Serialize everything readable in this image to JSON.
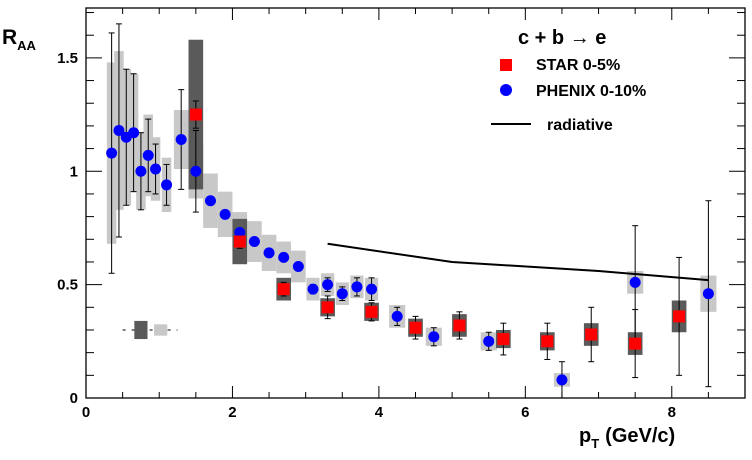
{
  "chart_data": {
    "type": "scatter",
    "title": "",
    "xlabel": "p",
    "xlabel_sub": "T",
    "xlabel_unit": "(GeV/c)",
    "ylabel": "R",
    "ylabel_sub": "AA",
    "xlim": [
      0,
      9
    ],
    "ylim": [
      0,
      1.72
    ],
    "x_ticks": [
      0,
      2,
      4,
      6,
      8
    ],
    "y_ticks": [
      0,
      0.5,
      1,
      1.5
    ],
    "x_tick_labels": [
      "0",
      "2",
      "4",
      "6",
      "8"
    ],
    "y_tick_labels": [
      "0",
      "0.5",
      "1",
      "1.5"
    ],
    "grid": false,
    "legend_position": "top-right",
    "legend_title": "c + b → e",
    "colors": {
      "star": "#ff0000",
      "phenix": "#0000ff",
      "star_sys": "#5a5a5a",
      "phenix_sys": "#c8c8c8",
      "radiative": "#000000"
    },
    "series": [
      {
        "name": "STAR 0-5%",
        "marker": "square",
        "points": [
          {
            "x": 1.5,
            "y": 1.25,
            "err": 0.06,
            "sys": 0.33
          },
          {
            "x": 2.1,
            "y": 0.69,
            "err": 0.03,
            "sys": 0.1
          },
          {
            "x": 2.7,
            "y": 0.48,
            "err": 0.03,
            "sys": 0.05
          },
          {
            "x": 3.3,
            "y": 0.4,
            "err": 0.05,
            "sys": 0.04
          },
          {
            "x": 3.9,
            "y": 0.38,
            "err": 0.04,
            "sys": 0.04
          },
          {
            "x": 4.5,
            "y": 0.31,
            "err": 0.05,
            "sys": 0.04
          },
          {
            "x": 5.1,
            "y": 0.32,
            "err": 0.06,
            "sys": 0.05
          },
          {
            "x": 5.7,
            "y": 0.26,
            "err": 0.07,
            "sys": 0.04
          },
          {
            "x": 6.3,
            "y": 0.25,
            "err": 0.08,
            "sys": 0.04
          },
          {
            "x": 6.9,
            "y": 0.28,
            "err": 0.12,
            "sys": 0.05
          },
          {
            "x": 7.5,
            "y": 0.24,
            "err": 0.15,
            "sys": 0.05
          },
          {
            "x": 8.1,
            "y": 0.36,
            "err": 0.26,
            "sys": 0.07
          }
        ]
      },
      {
        "name": "PHENIX 0-10%",
        "marker": "circle",
        "points": [
          {
            "x": 0.35,
            "y": 1.08,
            "err": 0.53,
            "sys": 0.4
          },
          {
            "x": 0.45,
            "y": 1.18,
            "err": 0.47,
            "sys": 0.35
          },
          {
            "x": 0.55,
            "y": 1.15,
            "err": 0.3,
            "sys": 0.3
          },
          {
            "x": 0.65,
            "y": 1.17,
            "err": 0.26,
            "sys": 0.26
          },
          {
            "x": 0.75,
            "y": 1.0,
            "err": 0.17,
            "sys": 0.17
          },
          {
            "x": 0.85,
            "y": 1.07,
            "err": 0.16,
            "sys": 0.18
          },
          {
            "x": 0.95,
            "y": 1.01,
            "err": 0.11,
            "sys": 0.14
          },
          {
            "x": 1.1,
            "y": 0.94,
            "err": 0.09,
            "sys": 0.12
          },
          {
            "x": 1.3,
            "y": 1.14,
            "err": 0.22,
            "sys": 0.13
          },
          {
            "x": 1.5,
            "y": 1.0,
            "err": 0.18,
            "sys": 0.12
          },
          {
            "x": 1.7,
            "y": 0.87,
            "err": 0.0,
            "sys": 0.12
          },
          {
            "x": 1.9,
            "y": 0.81,
            "err": 0.0,
            "sys": 0.1
          },
          {
            "x": 2.1,
            "y": 0.73,
            "err": 0.0,
            "sys": 0.09
          },
          {
            "x": 2.3,
            "y": 0.69,
            "err": 0.0,
            "sys": 0.09
          },
          {
            "x": 2.5,
            "y": 0.64,
            "err": 0.0,
            "sys": 0.08
          },
          {
            "x": 2.7,
            "y": 0.62,
            "err": 0.0,
            "sys": 0.07
          },
          {
            "x": 2.9,
            "y": 0.58,
            "err": 0.0,
            "sys": 0.07
          },
          {
            "x": 3.1,
            "y": 0.48,
            "err": 0.02,
            "sys": 0.05
          },
          {
            "x": 3.3,
            "y": 0.5,
            "err": 0.03,
            "sys": 0.05
          },
          {
            "x": 3.5,
            "y": 0.46,
            "err": 0.03,
            "sys": 0.05
          },
          {
            "x": 3.7,
            "y": 0.49,
            "err": 0.04,
            "sys": 0.05
          },
          {
            "x": 3.9,
            "y": 0.48,
            "err": 0.05,
            "sys": 0.05
          },
          {
            "x": 4.25,
            "y": 0.36,
            "err": 0.04,
            "sys": 0.05
          },
          {
            "x": 4.75,
            "y": 0.27,
            "err": 0.04,
            "sys": 0.04
          },
          {
            "x": 5.5,
            "y": 0.25,
            "err": 0.04,
            "sys": 0.04
          },
          {
            "x": 6.5,
            "y": 0.08,
            "err": 0.08,
            "sys": 0.03
          },
          {
            "x": 7.5,
            "y": 0.51,
            "err": 0.25,
            "sys": 0.05
          },
          {
            "x": 8.5,
            "y": 0.46,
            "err": 0.41,
            "sys": 0.08
          }
        ]
      }
    ],
    "curve": {
      "name": "radiative",
      "x": [
        3.3,
        5.0,
        7.0,
        8.5
      ],
      "y": [
        0.68,
        0.6,
        0.56,
        0.52
      ]
    },
    "normalization_boxes": [
      {
        "x": 0.75,
        "half_width": 0.09,
        "y": 0.3,
        "half_height": 0.04,
        "kind": "star_sys"
      },
      {
        "x": 1.02,
        "half_width": 0.09,
        "y": 0.3,
        "half_height": 0.025,
        "kind": "phenix_sys"
      }
    ],
    "normalization_marker": {
      "y": 0.3,
      "x_from": 0.5,
      "x_to": 1.25
    }
  }
}
